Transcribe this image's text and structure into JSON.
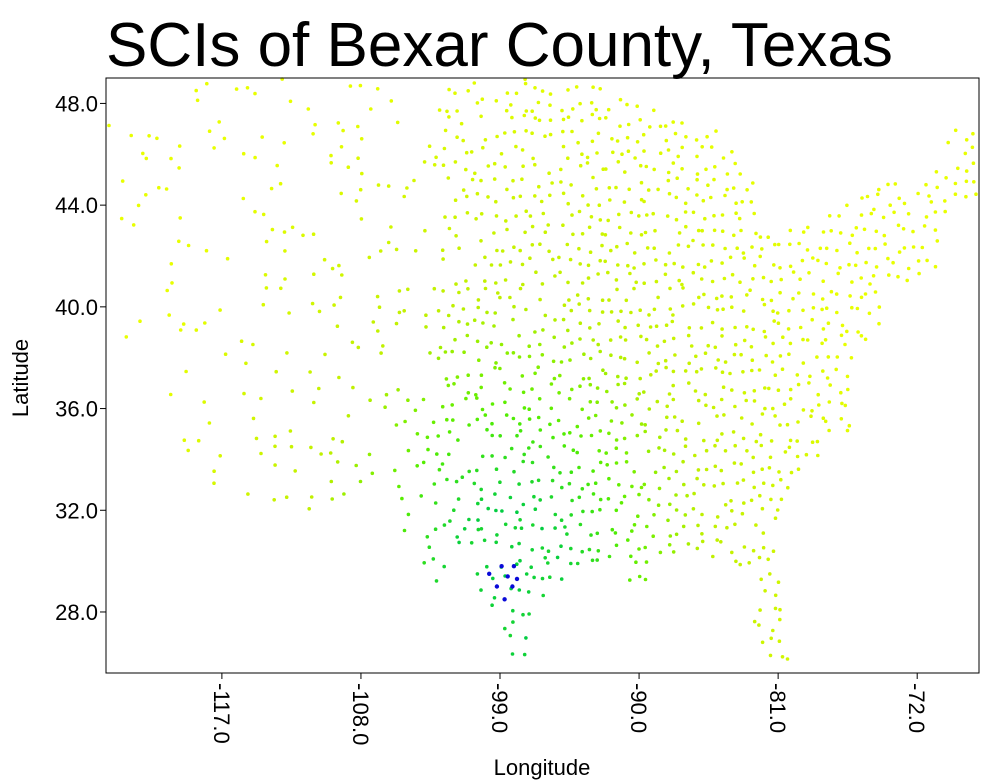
{
  "chart_data": {
    "type": "scatter",
    "title": "SCIs of Bexar County, Texas",
    "xlabel": "Longitude",
    "ylabel": "Latitude",
    "xlim": [
      -124.5,
      -68.0
    ],
    "ylim": [
      25.6,
      49.0
    ],
    "xticks": [
      -117.0,
      -108.0,
      -99.0,
      -90.0,
      -81.0,
      -72.0
    ],
    "xtick_labels": [
      "-117.0",
      "-108.0",
      "-99.0",
      "-90.0",
      "-81.0",
      "-72.0"
    ],
    "yticks": [
      28.0,
      32.0,
      36.0,
      40.0,
      44.0,
      48.0
    ],
    "ytick_labels": [
      "28.0",
      "32.0",
      "36.0",
      "40.0",
      "44.0",
      "48.0"
    ],
    "grid": false,
    "legend": "none",
    "colors": {
      "lowest": "#e8ff00",
      "low": "#bff000",
      "mid": "#55ee00",
      "high": "#00cc44",
      "highest": "#0a0ad8"
    },
    "highlight_points": [
      {
        "x": -98.5,
        "y": 29.4,
        "level": "highest"
      },
      {
        "x": -98.9,
        "y": 29.8,
        "level": "highest"
      },
      {
        "x": -98.1,
        "y": 29.8,
        "level": "highest"
      },
      {
        "x": -98.2,
        "y": 29.0,
        "level": "highest"
      },
      {
        "x": -99.2,
        "y": 29.0,
        "level": "highest"
      },
      {
        "x": -98.7,
        "y": 28.5,
        "level": "highest"
      },
      {
        "x": -99.7,
        "y": 29.5,
        "level": "highest"
      },
      {
        "x": -97.9,
        "y": 29.3,
        "level": "highest"
      }
    ]
  }
}
